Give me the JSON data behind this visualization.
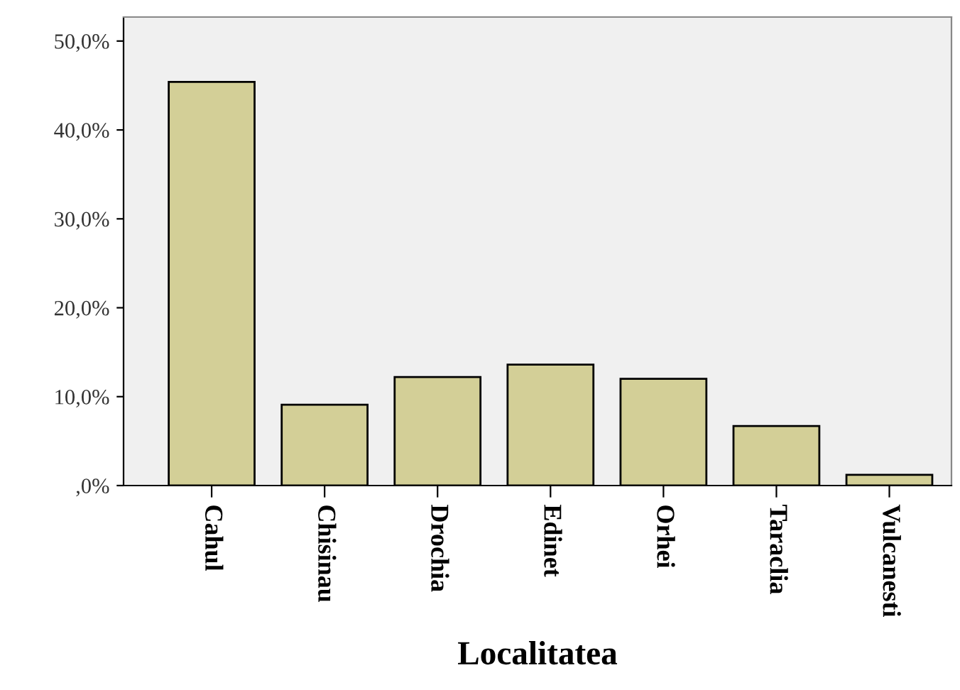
{
  "chart_data": {
    "type": "bar",
    "xlabel": "Localitatea",
    "categories": [
      "Cahul",
      "Chisinau",
      "Drochia",
      "Edinet",
      "Orhei",
      "Taraclia",
      "Vulcanesti"
    ],
    "values": [
      45.4,
      9.1,
      12.2,
      13.6,
      12.0,
      6.7,
      1.2
    ],
    "color": "#d3cf97",
    "ylim": [
      0,
      52.7
    ],
    "yticks": [
      {
        "value": 0,
        "label": ",0%"
      },
      {
        "value": 10,
        "label": "10,0%"
      },
      {
        "value": 20,
        "label": "20,0%"
      },
      {
        "value": 30,
        "label": "30,0%"
      },
      {
        "value": 40,
        "label": "40,0%"
      },
      {
        "value": 50,
        "label": "50,0%"
      }
    ],
    "grid": false
  }
}
